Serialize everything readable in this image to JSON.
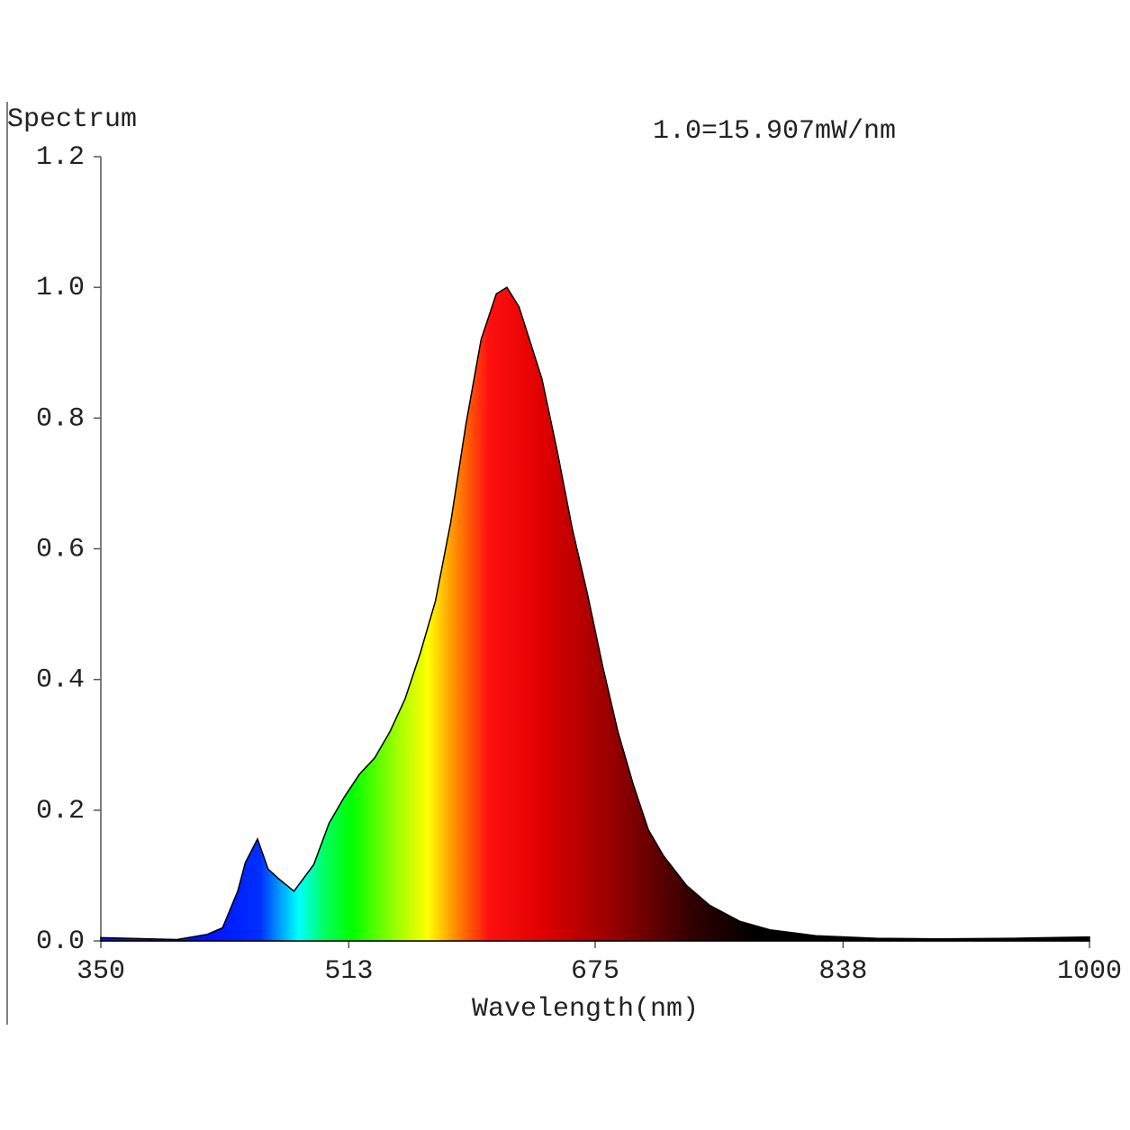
{
  "chart_data": {
    "type": "area",
    "title": "Spectrum",
    "annotation": "1.0=15.907mW/nm",
    "x_label": "Wavelength(nm)",
    "x": [
      350,
      400,
      420,
      430,
      440,
      445,
      453,
      460,
      467,
      477,
      490,
      500,
      510,
      520,
      530,
      540,
      550,
      560,
      570,
      580,
      590,
      600,
      610,
      617,
      625,
      640,
      650,
      660,
      670,
      680,
      690,
      700,
      710,
      720,
      735,
      750,
      770,
      790,
      820,
      860,
      900,
      950,
      1000
    ],
    "values": [
      0.005,
      0.002,
      0.01,
      0.02,
      0.076,
      0.12,
      0.156,
      0.11,
      0.095,
      0.076,
      0.117,
      0.18,
      0.22,
      0.255,
      0.28,
      0.32,
      0.37,
      0.44,
      0.52,
      0.64,
      0.79,
      0.92,
      0.99,
      1.0,
      0.97,
      0.86,
      0.75,
      0.63,
      0.53,
      0.42,
      0.32,
      0.24,
      0.17,
      0.13,
      0.085,
      0.055,
      0.03,
      0.017,
      0.008,
      0.004,
      0.003,
      0.004,
      0.006
    ],
    "xlim": [
      350,
      1000
    ],
    "xticks": [
      350,
      513,
      675,
      838,
      1000
    ],
    "ylim": [
      0,
      1.2
    ],
    "yticks": [
      {
        "value": 0,
        "label": "0.0"
      },
      0.2,
      0.4,
      0.6,
      0.8,
      {
        "value": 1,
        "label": "1.0"
      },
      1.2
    ],
    "fill": "spectral",
    "grid": false
  }
}
